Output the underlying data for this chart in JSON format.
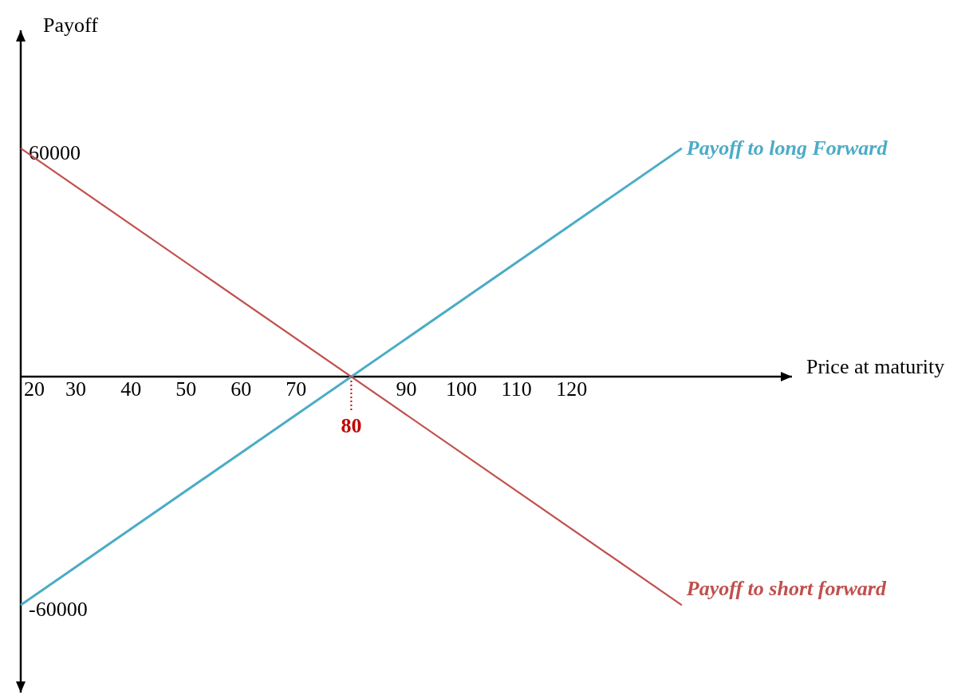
{
  "chart_data": {
    "type": "line",
    "xlabel": "Price at maturity",
    "ylabel": "Payoff",
    "x": [
      20,
      140
    ],
    "series": [
      {
        "name": "Payoff to long Forward",
        "color": "#4bacc6",
        "values": [
          -60000,
          60000
        ]
      },
      {
        "name": "Payoff to short forward",
        "color": "#c0504d",
        "values": [
          60000,
          -60000
        ]
      }
    ],
    "xlim": [
      20,
      160
    ],
    "xticks": [
      20,
      30,
      40,
      50,
      60,
      70,
      90,
      100,
      110,
      120
    ],
    "ylim": [
      -83000,
      91000
    ],
    "yticks": [
      60000,
      -60000
    ],
    "ref_lines": [
      {
        "axis": "x",
        "value": 80,
        "label": "80",
        "color": "#c00000",
        "line_style": "dotted"
      }
    ],
    "grid": false,
    "marker": "none",
    "line_style": "solid"
  }
}
